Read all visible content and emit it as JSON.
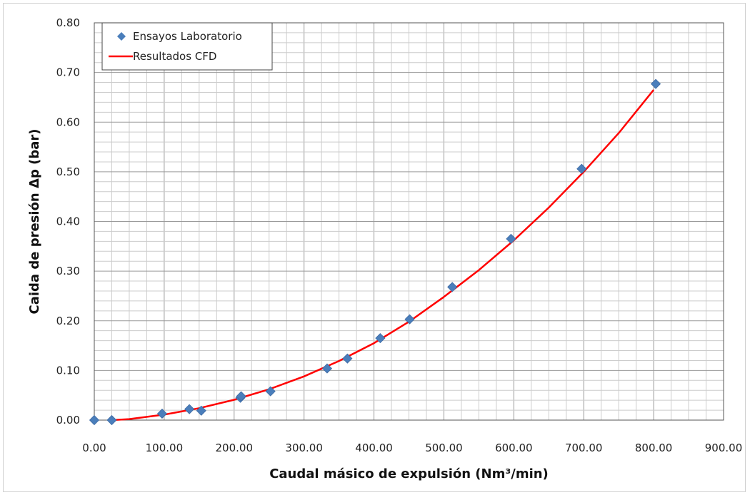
{
  "chart_data": {
    "type": "scatter",
    "xlabel": "Caudal másico de expulsión (Nm³/min)",
    "ylabel": "Caida de presión Δp (bar)",
    "xlim": [
      0,
      900
    ],
    "ylim": [
      0,
      0.8
    ],
    "x_ticks": [
      "0.00",
      "100.00",
      "200.00",
      "300.00",
      "400.00",
      "500.00",
      "600.00",
      "700.00",
      "800.00",
      "900.00"
    ],
    "y_ticks": [
      "0.00",
      "0.10",
      "0.20",
      "0.30",
      "0.40",
      "0.50",
      "0.60",
      "0.70",
      "0.80"
    ],
    "grid": true,
    "legend_position": "top-left",
    "series": [
      {
        "name": "Ensayos Laboratorio",
        "kind": "scatter",
        "marker": "diamond",
        "color": "#4a7ebb",
        "points": [
          [
            0,
            0.0
          ],
          [
            25,
            0.0
          ],
          [
            97,
            0.013
          ],
          [
            136,
            0.022
          ],
          [
            153,
            0.019
          ],
          [
            209,
            0.045
          ],
          [
            210,
            0.048
          ],
          [
            252,
            0.058
          ],
          [
            333,
            0.104
          ],
          [
            362,
            0.124
          ],
          [
            409,
            0.165
          ],
          [
            451,
            0.203
          ],
          [
            512,
            0.268
          ],
          [
            596,
            0.365
          ],
          [
            697,
            0.506
          ],
          [
            803,
            0.677
          ]
        ]
      },
      {
        "name": "Resultados CFD",
        "kind": "line",
        "color": "#ff0000",
        "points": [
          [
            25,
            0.0
          ],
          [
            50,
            0.002
          ],
          [
            100,
            0.011
          ],
          [
            150,
            0.024
          ],
          [
            200,
            0.041
          ],
          [
            250,
            0.062
          ],
          [
            300,
            0.088
          ],
          [
            350,
            0.119
          ],
          [
            400,
            0.155
          ],
          [
            450,
            0.198
          ],
          [
            500,
            0.248
          ],
          [
            550,
            0.302
          ],
          [
            600,
            0.362
          ],
          [
            650,
            0.428
          ],
          [
            700,
            0.5
          ],
          [
            750,
            0.578
          ],
          [
            800,
            0.665
          ]
        ]
      }
    ]
  }
}
